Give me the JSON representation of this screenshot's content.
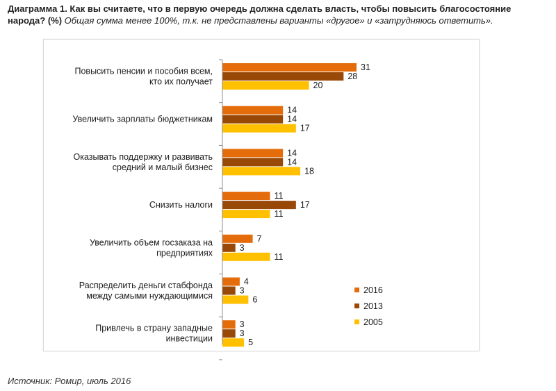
{
  "header": {
    "title": "Диаграмма 1. Как вы считаете, что в первую очередь должна сделать власть, чтобы повысить благосостояние народа? (%)",
    "note": "Общая сумма менее 100%, т.к. не представлены варианты «другое» и «затрудняюсь ответить»."
  },
  "source": "Источник: Ромир, июль 2016",
  "chart_data": {
    "type": "bar",
    "orientation": "horizontal",
    "title": "",
    "xlabel": "",
    "ylabel": "",
    "xlim": [
      0,
      35
    ],
    "grid": false,
    "legend_position": "bottom-right",
    "categories": [
      [
        "Повысить пенсии и пособия всем,",
        "кто их получает"
      ],
      [
        "Увеличить зарплаты бюджетникам"
      ],
      [
        "Оказывать поддержку и развивать",
        "средний и малый бизнес"
      ],
      [
        "Снизить налоги"
      ],
      [
        "Увеличить объем госзаказа на",
        "предприятиях"
      ],
      [
        "Распределить деньги стабфонда",
        "между самыми нуждающимися"
      ],
      [
        "Привлечь в страну западные",
        "инвестиции"
      ]
    ],
    "series": [
      {
        "name": "2016",
        "color": "#E46C0A",
        "values": [
          31,
          14,
          14,
          11,
          7,
          4,
          3
        ]
      },
      {
        "name": "2013",
        "color": "#984807",
        "values": [
          28,
          14,
          14,
          17,
          3,
          3,
          3
        ]
      },
      {
        "name": "2005",
        "color": "#FFC000",
        "values": [
          20,
          17,
          18,
          11,
          11,
          6,
          5
        ]
      }
    ]
  }
}
